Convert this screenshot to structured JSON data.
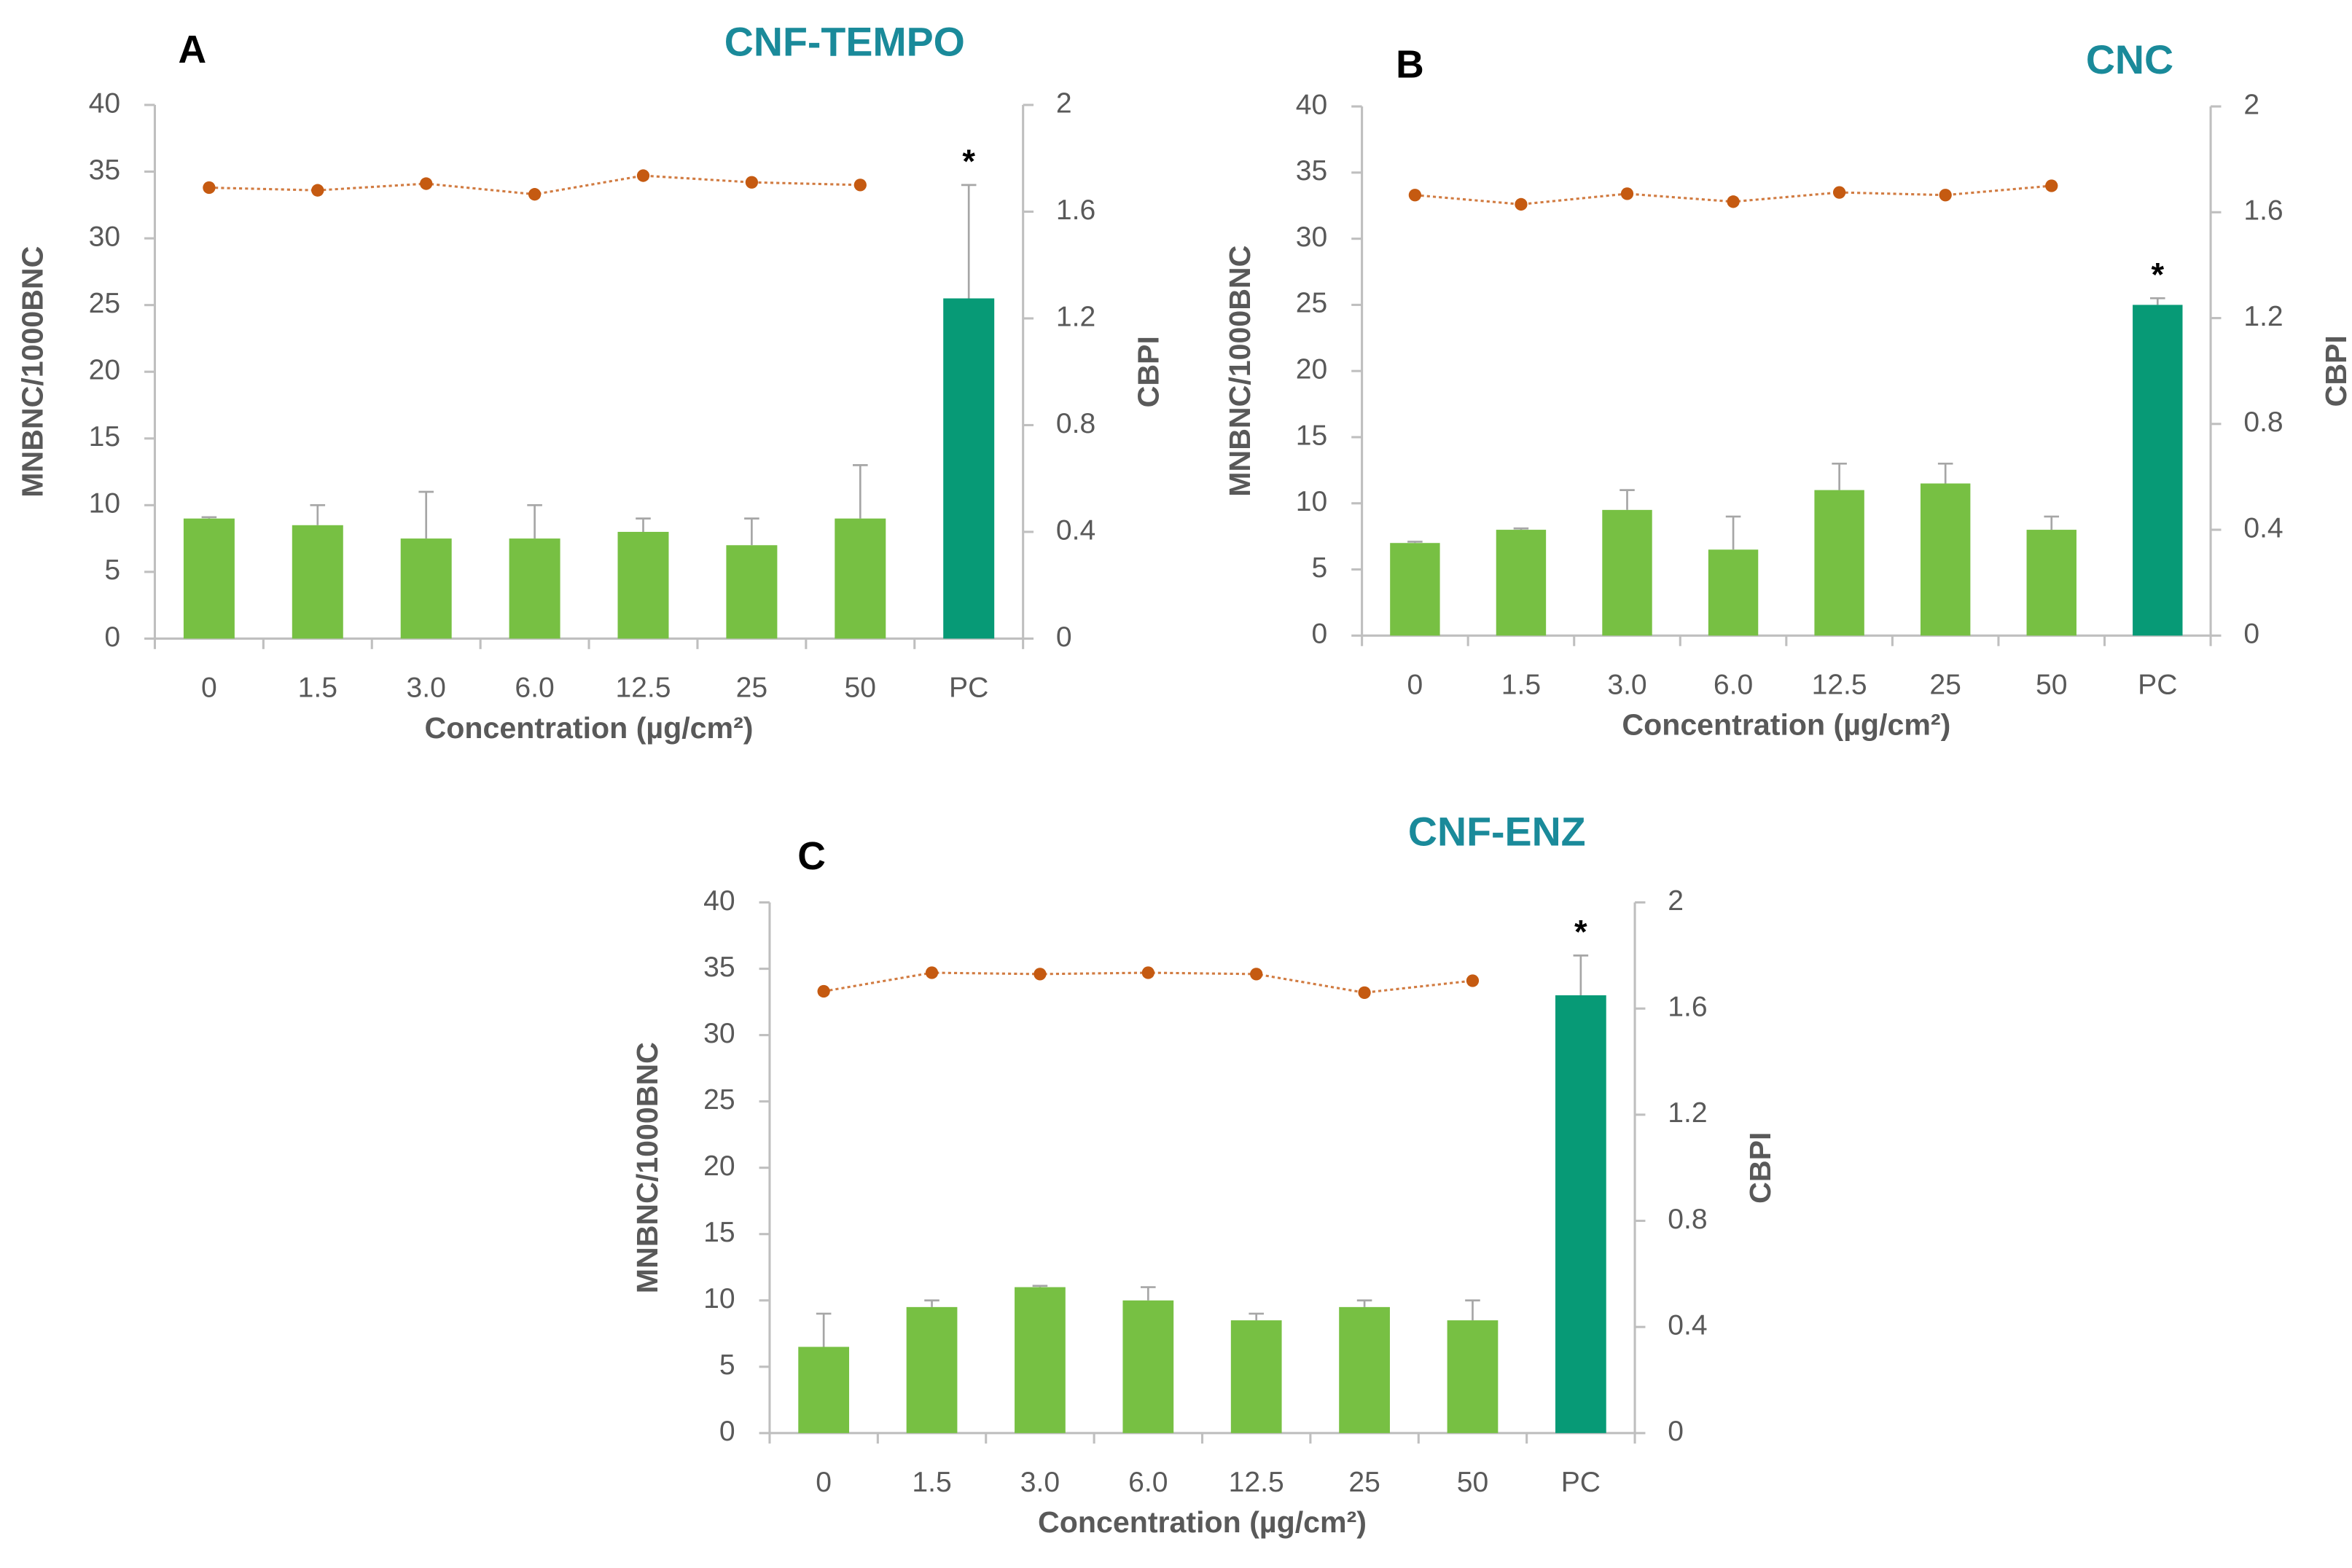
{
  "chart_data": [
    {
      "type": "bar",
      "panel_label": "A",
      "title": "CNF-TEMPO",
      "xlabel": "Concentration (µg/cm²)",
      "ylabel": "MNBNC/1000BNC",
      "y2label": "CBPI",
      "categories": [
        "0",
        "1.5",
        "3.0",
        "6.0",
        "12.5",
        "25",
        "50",
        "PC"
      ],
      "series": [
        {
          "values": [
            9,
            8.5,
            7.5,
            7.5,
            8,
            7,
            9,
            25.5
          ],
          "errors": [
            0.1,
            1.5,
            3.5,
            2.5,
            1,
            2,
            4,
            8.5
          ],
          "colors": [
            "#77c043",
            "#77c043",
            "#77c043",
            "#77c043",
            "#77c043",
            "#77c043",
            "#77c043",
            "#079a76"
          ]
        },
        {
          "type": "line",
          "axis": "y2",
          "color": "#c55a11",
          "values": [
            1.69,
            1.68,
            1.705,
            1.665,
            1.735,
            1.71,
            1.7,
            null
          ]
        }
      ],
      "ylim": [
        0,
        40
      ],
      "yticks": [
        0,
        5,
        10,
        15,
        20,
        25,
        30,
        35,
        40
      ],
      "y2lim": [
        0,
        2
      ],
      "y2ticks": [
        0,
        0.4,
        0.8,
        1.2,
        1.6,
        2
      ],
      "annotations": [
        {
          "text": "*",
          "x": "PC"
        }
      ]
    },
    {
      "type": "bar",
      "panel_label": "B",
      "title": "CNC",
      "xlabel": "Concentration (µg/cm²)",
      "ylabel": "MNBNC/1000BNC",
      "y2label": "CBPI",
      "categories": [
        "0",
        "1.5",
        "3.0",
        "6.0",
        "12.5",
        "25",
        "50",
        "PC"
      ],
      "series": [
        {
          "values": [
            7,
            8,
            9.5,
            6.5,
            11,
            11.5,
            8,
            25
          ],
          "errors": [
            0.1,
            0.1,
            1.5,
            2.5,
            2,
            1.5,
            1,
            0.5
          ],
          "colors": [
            "#77c043",
            "#77c043",
            "#77c043",
            "#77c043",
            "#77c043",
            "#77c043",
            "#77c043",
            "#079a76"
          ]
        },
        {
          "type": "line",
          "axis": "y2",
          "color": "#c55a11",
          "values": [
            1.665,
            1.63,
            1.67,
            1.64,
            1.675,
            1.665,
            1.7,
            null
          ]
        }
      ],
      "ylim": [
        0,
        40
      ],
      "yticks": [
        0,
        5,
        10,
        15,
        20,
        25,
        30,
        35,
        40
      ],
      "y2lim": [
        0,
        2
      ],
      "y2ticks": [
        0,
        0.4,
        0.8,
        1.2,
        1.6,
        2
      ],
      "annotations": [
        {
          "text": "*",
          "x": "PC"
        }
      ]
    },
    {
      "type": "bar",
      "panel_label": "C",
      "title": "CNF-ENZ",
      "xlabel": "Concentration (µg/cm²)",
      "ylabel": "MNBNC/1000BNC",
      "y2label": "CBPI",
      "categories": [
        "0",
        "1.5",
        "3.0",
        "6.0",
        "12.5",
        "25",
        "50",
        "PC"
      ],
      "series": [
        {
          "values": [
            6.5,
            9.5,
            11,
            10,
            8.5,
            9.5,
            8.5,
            33
          ],
          "errors": [
            2.5,
            0.5,
            0.1,
            1,
            0.5,
            0.5,
            1.5,
            3
          ],
          "colors": [
            "#77c043",
            "#77c043",
            "#77c043",
            "#77c043",
            "#77c043",
            "#77c043",
            "#77c043",
            "#079a76"
          ]
        },
        {
          "type": "line",
          "axis": "y2",
          "color": "#c55a11",
          "values": [
            1.665,
            1.735,
            1.73,
            1.735,
            1.73,
            1.66,
            1.705,
            null
          ]
        }
      ],
      "ylim": [
        0,
        40
      ],
      "yticks": [
        0,
        5,
        10,
        15,
        20,
        25,
        30,
        35,
        40
      ],
      "y2lim": [
        0,
        2
      ],
      "y2ticks": [
        0,
        0.4,
        0.8,
        1.2,
        1.6,
        2
      ],
      "annotations": [
        {
          "text": "*",
          "x": "PC"
        }
      ]
    }
  ]
}
